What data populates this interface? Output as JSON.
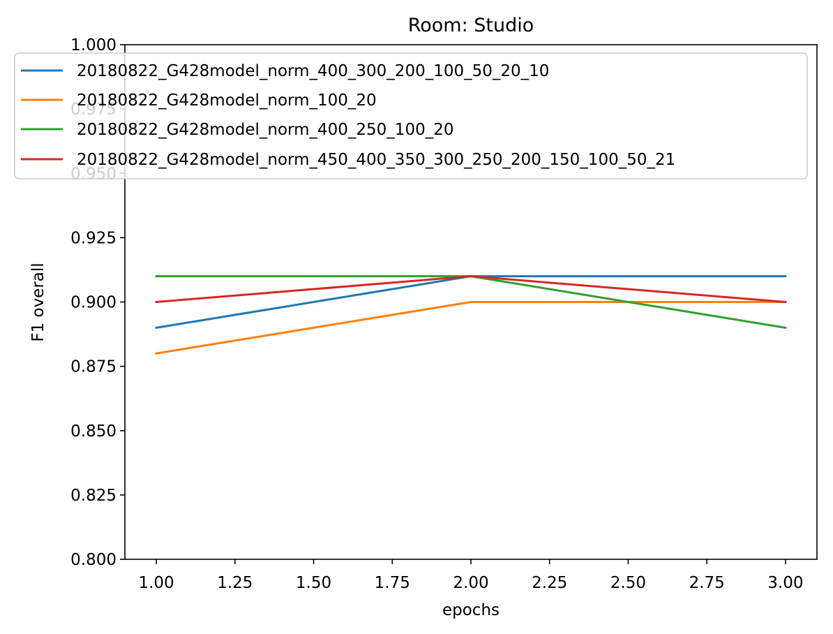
{
  "chart_data": {
    "type": "line",
    "title": "Room: Studio",
    "xlabel": "epochs",
    "ylabel": "F1 overall",
    "x": [
      1,
      2,
      3
    ],
    "xlim": [
      0.9,
      3.1
    ],
    "ylim": [
      0.8,
      1.0
    ],
    "xticks": [
      1.0,
      1.25,
      1.5,
      1.75,
      2.0,
      2.25,
      2.5,
      2.75,
      3.0
    ],
    "xtick_labels": [
      "1.00",
      "1.25",
      "1.50",
      "1.75",
      "2.00",
      "2.25",
      "2.50",
      "2.75",
      "3.00"
    ],
    "yticks": [
      0.8,
      0.825,
      0.85,
      0.875,
      0.9,
      0.925,
      0.95,
      0.975,
      1.0
    ],
    "ytick_labels": [
      "0.800",
      "0.825",
      "0.850",
      "0.875",
      "0.900",
      "0.925",
      "0.950",
      "0.975",
      "1.000"
    ],
    "grid": false,
    "legend_position": "top",
    "series": [
      {
        "name": "20180822_G428model_norm_400_300_200_100_50_20_10",
        "color": "#1f77b4",
        "values": [
          0.89,
          0.91,
          0.91
        ]
      },
      {
        "name": "20180822_G428model_norm_100_20",
        "color": "#ff7f0e",
        "values": [
          0.88,
          0.9,
          0.9
        ]
      },
      {
        "name": "20180822_G428model_norm_400_250_100_20",
        "color": "#2ca02c",
        "values": [
          0.91,
          0.91,
          0.89
        ]
      },
      {
        "name": "20180822_G428model_norm_450_400_350_300_250_200_150_100_50_21",
        "color": "#d62728",
        "values": [
          0.9,
          0.91,
          0.9
        ]
      }
    ]
  }
}
